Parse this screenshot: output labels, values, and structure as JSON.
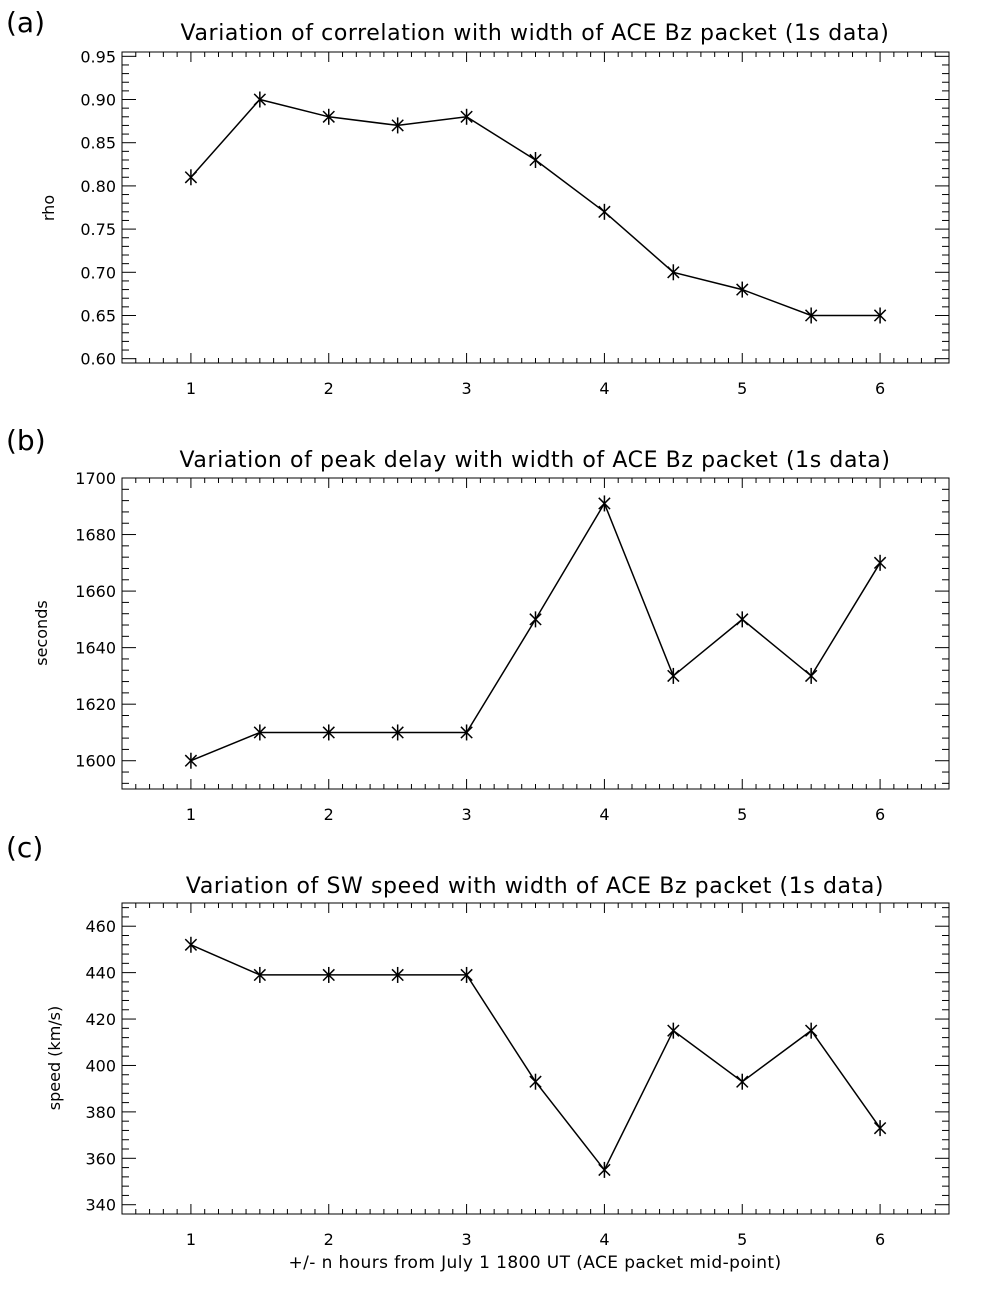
{
  "chart_data": [
    {
      "type": "line",
      "panel": "(a)",
      "title": "Variation of correlation with width of ACE Bz packet (1s data)",
      "xlabel": "",
      "ylabel": "rho",
      "xlim": [
        0.5,
        6.5
      ],
      "ylim": [
        0.595,
        0.955
      ],
      "xticks": [
        1,
        2,
        3,
        4,
        5,
        6
      ],
      "yticks": [
        "0.60",
        "0.65",
        "0.70",
        "0.75",
        "0.80",
        "0.85",
        "0.90",
        "0.95"
      ],
      "x": [
        1,
        1.5,
        2,
        2.5,
        3,
        3.5,
        4,
        4.5,
        5,
        5.5,
        6
      ],
      "y": [
        0.81,
        0.9,
        0.88,
        0.87,
        0.88,
        0.83,
        0.77,
        0.7,
        0.68,
        0.65,
        0.65
      ],
      "marker": "asterisk",
      "grid": false
    },
    {
      "type": "line",
      "panel": "(b)",
      "title": "Variation of peak delay with width of ACE Bz packet (1s data)",
      "xlabel": "",
      "ylabel": "seconds",
      "xlim": [
        0.5,
        6.5
      ],
      "ylim": [
        1590,
        1700
      ],
      "xticks": [
        1,
        2,
        3,
        4,
        5,
        6
      ],
      "yticks": [
        "1600",
        "1620",
        "1640",
        "1660",
        "1680",
        "1700"
      ],
      "x": [
        1,
        1.5,
        2,
        2.5,
        3,
        3.5,
        4,
        4.5,
        5,
        5.5,
        6
      ],
      "y": [
        1600,
        1610,
        1610,
        1610,
        1610,
        1650,
        1691,
        1630,
        1650,
        1630,
        1670
      ],
      "marker": "asterisk",
      "grid": false
    },
    {
      "type": "line",
      "panel": "(c)",
      "title": "Variation of SW speed with width of ACE Bz packet (1s data)",
      "xlabel": "+/- n hours from July 1 1800 UT (ACE packet mid-point)",
      "ylabel": "speed (km/s)",
      "xlim": [
        0.5,
        6.5
      ],
      "ylim": [
        336,
        470
      ],
      "xticks": [
        1,
        2,
        3,
        4,
        5,
        6
      ],
      "yticks": [
        "340",
        "360",
        "380",
        "400",
        "420",
        "440",
        "460"
      ],
      "x": [
        1,
        1.5,
        2,
        2.5,
        3,
        3.5,
        4,
        4.5,
        5,
        5.5,
        6
      ],
      "y": [
        452,
        439,
        439,
        439,
        439,
        393,
        355,
        415,
        393,
        415,
        373
      ],
      "marker": "asterisk",
      "grid": false
    }
  ]
}
